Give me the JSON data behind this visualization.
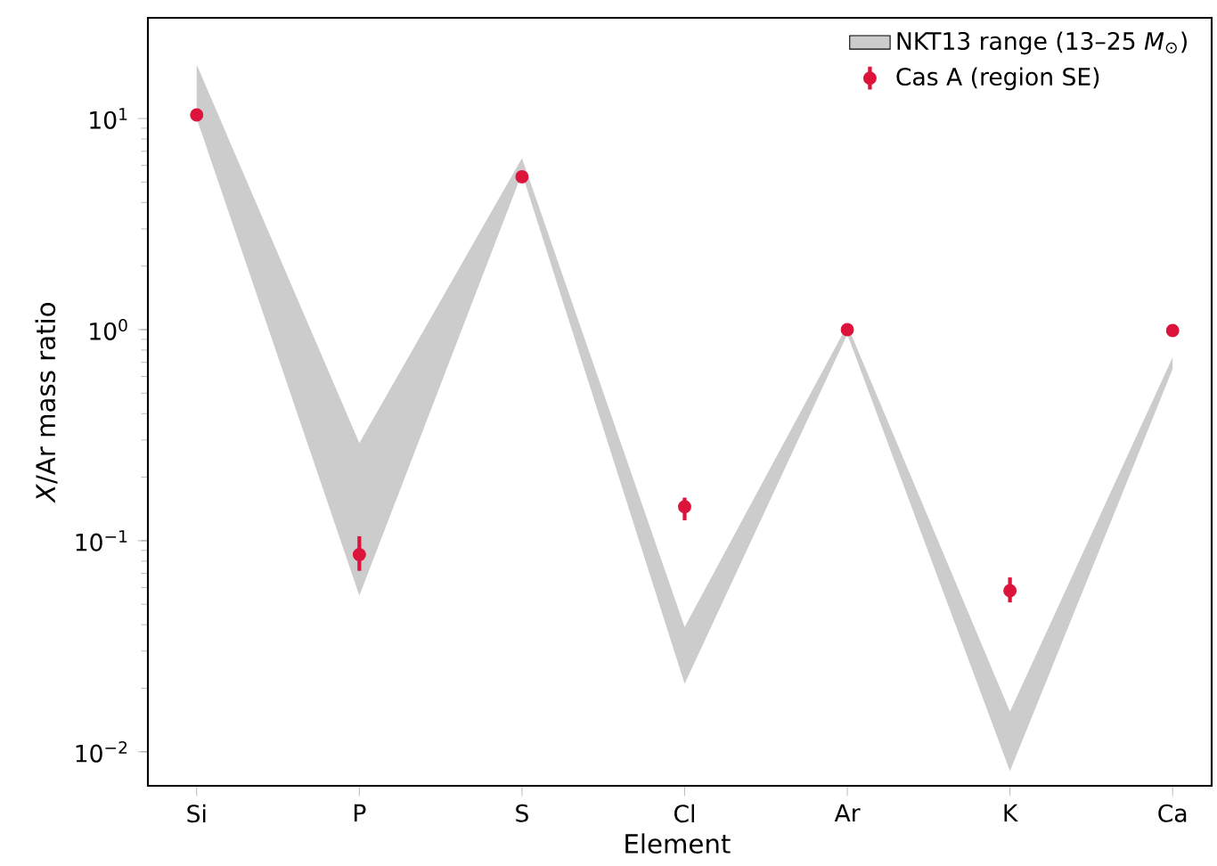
{
  "chart_data": {
    "type": "scatter",
    "xlabel": "Element",
    "ylabel": "*X*/Ar mass ratio",
    "categories": [
      "Si",
      "P",
      "S",
      "Cl",
      "Ar",
      "K",
      "Ca"
    ],
    "log": "y",
    "ylim": [
      0.0069,
      30
    ],
    "yticks": [
      {
        "value": 0.01,
        "label": "10$^{−2}$"
      },
      {
        "value": 0.1,
        "label": "10$^{−1}$"
      },
      {
        "value": 1,
        "label": "10$^{0}$"
      },
      {
        "value": 10,
        "label": "10$^{1}$"
      }
    ],
    "legend": "top right",
    "marker": "circle",
    "series": [
      {
        "type": "area",
        "name": "NKT13 range (13–25 *M*$_{⊙}$)",
        "color": "#cccccc",
        "values": [
          null,
          null,
          null,
          null,
          null,
          null,
          null
        ],
        "lower": [
          10,
          0.055,
          5.5,
          0.021,
          0.95,
          0.0081,
          0.65
        ],
        "upper": [
          18,
          0.29,
          6.5,
          0.039,
          1.05,
          0.0155,
          0.74
        ]
      },
      {
        "name": "Cas A (region SE)",
        "color": "#dc143c",
        "values": [
          10.4,
          0.086,
          5.3,
          0.145,
          1.0,
          0.058,
          0.99
        ],
        "errors": [
          null,
          [
            0.072,
            0.105
          ],
          null,
          [
            0.125,
            0.16
          ],
          null,
          [
            0.051,
            0.067
          ],
          null
        ]
      }
    ]
  }
}
